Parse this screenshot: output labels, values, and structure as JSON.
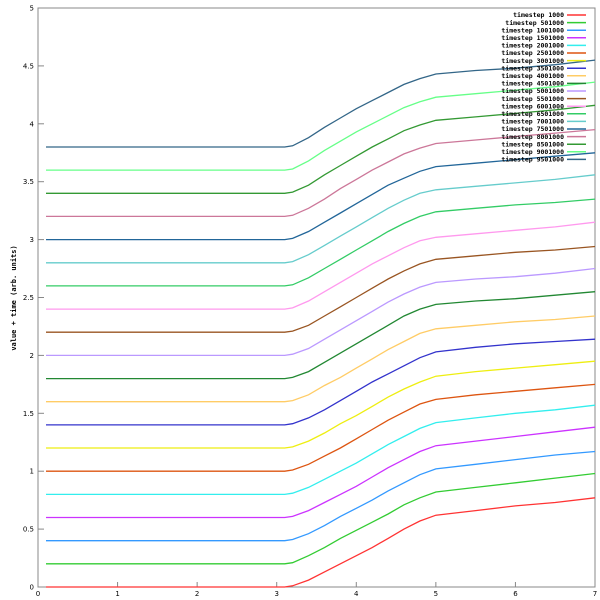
{
  "chart_data": {
    "type": "line",
    "title": "",
    "xlabel": "",
    "ylabel": "value + time (arb. units)",
    "xlim": [
      0,
      7
    ],
    "ylim": [
      0,
      5
    ],
    "xticks": [
      "0",
      "1",
      "2",
      "3",
      "4",
      "5",
      "6",
      "7"
    ],
    "yticks": [
      "0",
      "0.5",
      "1",
      "1.5",
      "2",
      "2.5",
      "3",
      "3.5",
      "4",
      "4.5",
      "5"
    ],
    "grid": false,
    "legend_position": "top-right",
    "x": [
      0.1,
      3.1,
      3.2,
      3.4,
      3.6,
      3.8,
      4.0,
      4.2,
      4.4,
      4.6,
      4.8,
      5.0,
      5.5,
      6.0,
      6.5,
      7.0
    ],
    "series": [
      {
        "name": "timestep 1000",
        "color": "#ff3333",
        "values": [
          0,
          0,
          0.01,
          0.06,
          0.13,
          0.2,
          0.27,
          0.34,
          0.42,
          0.5,
          0.57,
          0.62,
          0.66,
          0.7,
          0.73,
          0.77
        ]
      },
      {
        "name": "timestep 501000",
        "color": "#33cc33",
        "values": [
          0.2,
          0.2,
          0.21,
          0.27,
          0.34,
          0.42,
          0.49,
          0.56,
          0.63,
          0.71,
          0.77,
          0.82,
          0.86,
          0.9,
          0.94,
          0.98
        ]
      },
      {
        "name": "timestep 1001000",
        "color": "#3399ff",
        "values": [
          0.4,
          0.4,
          0.41,
          0.46,
          0.53,
          0.61,
          0.68,
          0.75,
          0.83,
          0.9,
          0.97,
          1.02,
          1.06,
          1.1,
          1.14,
          1.17
        ]
      },
      {
        "name": "timestep 1501000",
        "color": "#cc33ff",
        "values": [
          0.6,
          0.6,
          0.61,
          0.66,
          0.73,
          0.8,
          0.87,
          0.95,
          1.03,
          1.1,
          1.17,
          1.22,
          1.26,
          1.3,
          1.34,
          1.38
        ]
      },
      {
        "name": "timestep 2001000",
        "color": "#33eeee",
        "values": [
          0.8,
          0.8,
          0.81,
          0.86,
          0.93,
          1.0,
          1.07,
          1.15,
          1.23,
          1.3,
          1.37,
          1.42,
          1.46,
          1.5,
          1.53,
          1.57
        ]
      },
      {
        "name": "timestep 2501000",
        "color": "#dd5511",
        "values": [
          1.0,
          1.0,
          1.01,
          1.06,
          1.13,
          1.2,
          1.28,
          1.36,
          1.44,
          1.51,
          1.58,
          1.62,
          1.66,
          1.69,
          1.72,
          1.75
        ]
      },
      {
        "name": "timestep 3001000",
        "color": "#eeee11",
        "values": [
          1.2,
          1.2,
          1.21,
          1.26,
          1.33,
          1.41,
          1.48,
          1.56,
          1.64,
          1.71,
          1.77,
          1.82,
          1.86,
          1.89,
          1.92,
          1.95
        ]
      },
      {
        "name": "timestep 3501000",
        "color": "#3333cc",
        "values": [
          1.4,
          1.4,
          1.41,
          1.46,
          1.53,
          1.61,
          1.69,
          1.77,
          1.84,
          1.91,
          1.98,
          2.03,
          2.07,
          2.1,
          2.12,
          2.14
        ]
      },
      {
        "name": "timestep 4001000",
        "color": "#ffcc66",
        "values": [
          1.6,
          1.6,
          1.61,
          1.66,
          1.74,
          1.81,
          1.89,
          1.97,
          2.05,
          2.12,
          2.19,
          2.23,
          2.26,
          2.29,
          2.31,
          2.34
        ]
      },
      {
        "name": "timestep 4501000",
        "color": "#228833",
        "values": [
          1.8,
          1.8,
          1.81,
          1.86,
          1.94,
          2.02,
          2.1,
          2.18,
          2.26,
          2.34,
          2.4,
          2.44,
          2.47,
          2.49,
          2.52,
          2.55
        ]
      },
      {
        "name": "timestep 5001000",
        "color": "#bb99ff",
        "values": [
          2.0,
          2.0,
          2.01,
          2.06,
          2.14,
          2.22,
          2.3,
          2.38,
          2.46,
          2.53,
          2.59,
          2.63,
          2.66,
          2.68,
          2.71,
          2.75
        ]
      },
      {
        "name": "timestep 5501000",
        "color": "#995522",
        "values": [
          2.2,
          2.2,
          2.21,
          2.26,
          2.34,
          2.42,
          2.5,
          2.58,
          2.66,
          2.73,
          2.79,
          2.83,
          2.86,
          2.89,
          2.91,
          2.94
        ]
      },
      {
        "name": "timestep 6001000",
        "color": "#ff99ee",
        "values": [
          2.4,
          2.4,
          2.41,
          2.47,
          2.55,
          2.63,
          2.71,
          2.79,
          2.86,
          2.93,
          2.99,
          3.02,
          3.05,
          3.08,
          3.11,
          3.15
        ]
      },
      {
        "name": "timestep 6501000",
        "color": "#33cc66",
        "values": [
          2.6,
          2.6,
          2.61,
          2.67,
          2.75,
          2.83,
          2.91,
          2.99,
          3.07,
          3.14,
          3.2,
          3.24,
          3.27,
          3.3,
          3.32,
          3.35
        ]
      },
      {
        "name": "timestep 7001000",
        "color": "#66cccc",
        "values": [
          2.8,
          2.8,
          2.81,
          2.87,
          2.95,
          3.03,
          3.11,
          3.19,
          3.27,
          3.34,
          3.4,
          3.43,
          3.46,
          3.49,
          3.52,
          3.56
        ]
      },
      {
        "name": "timestep 7501000",
        "color": "#226699",
        "values": [
          3.0,
          3.0,
          3.01,
          3.07,
          3.15,
          3.23,
          3.31,
          3.39,
          3.47,
          3.53,
          3.59,
          3.63,
          3.66,
          3.69,
          3.72,
          3.75
        ]
      },
      {
        "name": "timestep 8001000",
        "color": "#cc7799",
        "values": [
          3.2,
          3.2,
          3.21,
          3.27,
          3.35,
          3.44,
          3.52,
          3.6,
          3.67,
          3.74,
          3.79,
          3.83,
          3.86,
          3.89,
          3.92,
          3.95
        ]
      },
      {
        "name": "timestep 8501000",
        "color": "#339933",
        "values": [
          3.4,
          3.4,
          3.41,
          3.47,
          3.56,
          3.64,
          3.72,
          3.8,
          3.87,
          3.94,
          3.99,
          4.03,
          4.06,
          4.09,
          4.12,
          4.16
        ]
      },
      {
        "name": "timestep 9001000",
        "color": "#66ff88",
        "values": [
          3.6,
          3.6,
          3.61,
          3.68,
          3.77,
          3.85,
          3.93,
          4.0,
          4.07,
          4.14,
          4.19,
          4.23,
          4.26,
          4.29,
          4.32,
          4.36
        ]
      },
      {
        "name": "timestep 9501000",
        "color": "#336688",
        "values": [
          3.8,
          3.8,
          3.81,
          3.88,
          3.97,
          4.05,
          4.13,
          4.2,
          4.27,
          4.34,
          4.39,
          4.43,
          4.46,
          4.48,
          4.51,
          4.55
        ]
      }
    ]
  }
}
